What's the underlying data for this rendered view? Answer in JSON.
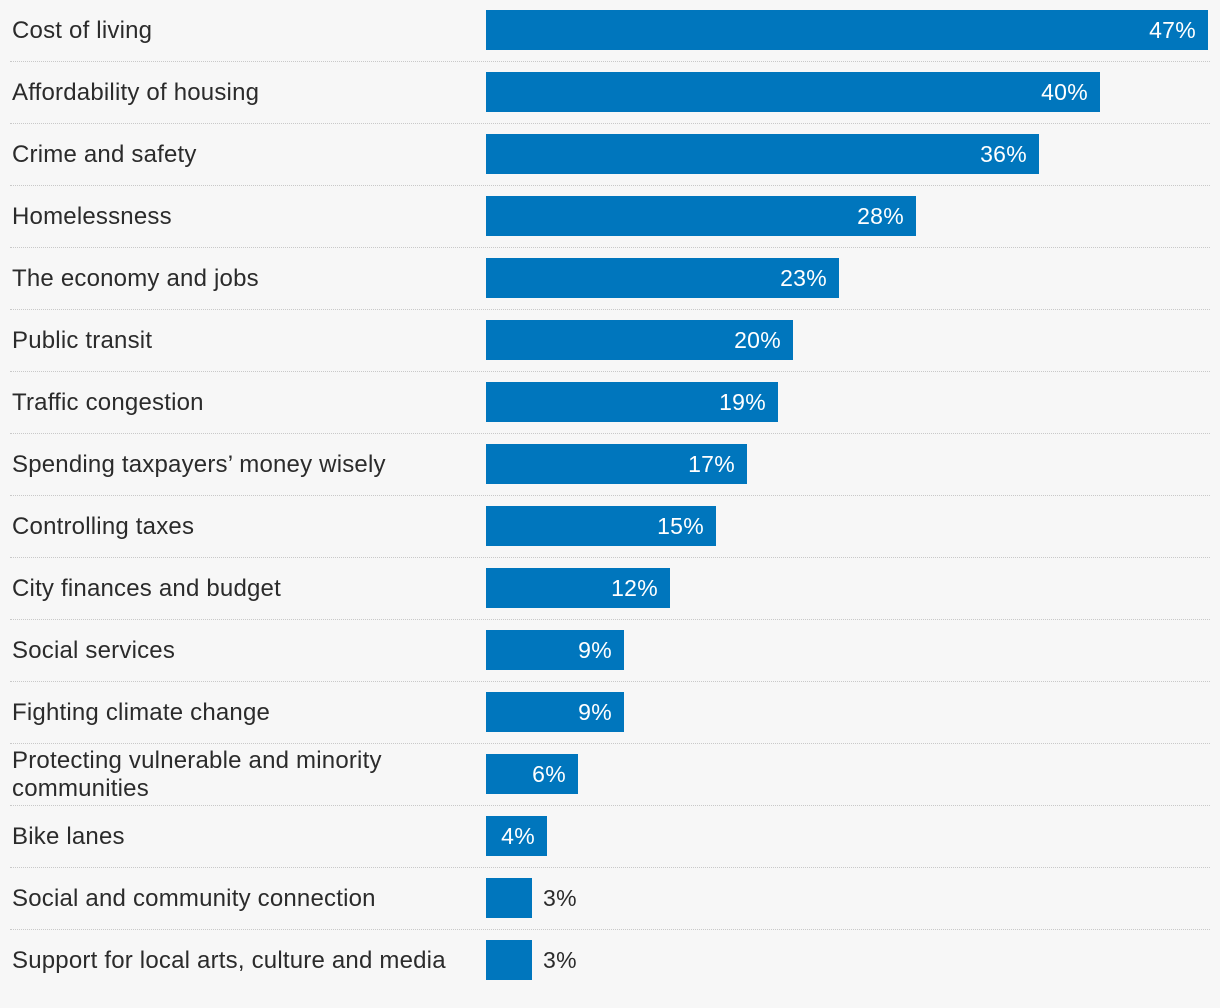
{
  "chart_data": {
    "type": "bar",
    "orientation": "horizontal",
    "title": "",
    "xlabel": "",
    "ylabel": "",
    "xlim": [
      0,
      47
    ],
    "bar_color": "#0076bd",
    "categories": [
      "Cost of living",
      "Affordability of housing",
      "Crime and safety",
      "Homelessness",
      "The economy and jobs",
      "Public transit",
      "Traffic congestion",
      "Spending taxpayers’ money wisely",
      "Controlling taxes",
      "City finances and budget",
      "Social services",
      "Fighting climate change",
      "Protecting vulnerable and minority communities",
      "Bike lanes",
      "Social and community connection",
      "Support for local arts, culture and media"
    ],
    "values": [
      47,
      40,
      36,
      28,
      23,
      20,
      19,
      17,
      15,
      12,
      9,
      9,
      6,
      4,
      3,
      3
    ],
    "value_labels": [
      "47%",
      "40%",
      "36%",
      "28%",
      "23%",
      "20%",
      "19%",
      "17%",
      "15%",
      "12%",
      "9%",
      "9%",
      "6%",
      "4%",
      "3%",
      "3%"
    ]
  }
}
